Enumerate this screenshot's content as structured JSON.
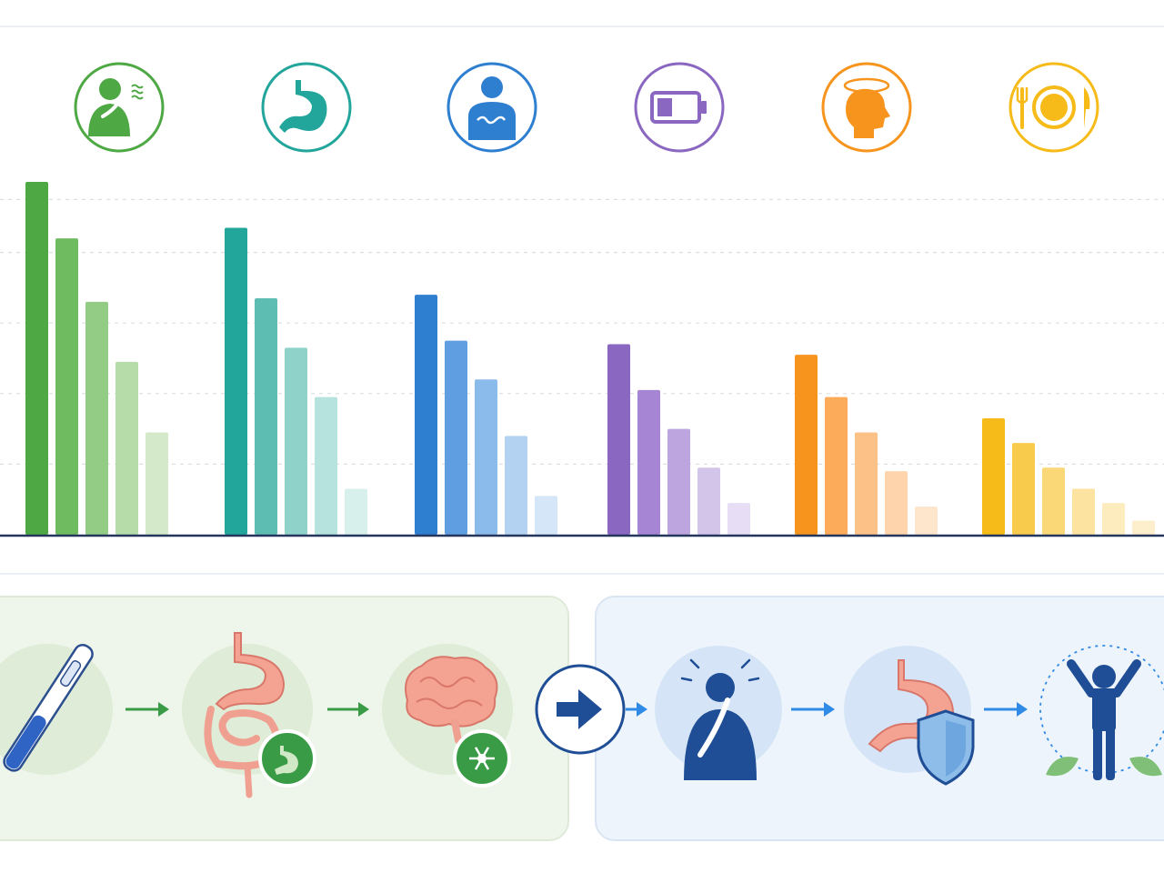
{
  "chart_data": {
    "type": "bar",
    "categories": [
      "nausea",
      "stomach",
      "abdominal-pain",
      "fatigue",
      "dizziness",
      "appetite"
    ],
    "series": [
      {
        "values": [
          100,
          87,
          68,
          54,
          51,
          33
        ]
      },
      {
        "values": [
          84,
          67,
          55,
          41,
          39,
          26
        ]
      },
      {
        "values": [
          66,
          53,
          44,
          30,
          29,
          19
        ]
      },
      {
        "values": [
          49,
          39,
          28,
          19,
          18,
          13
        ]
      },
      {
        "values": [
          29,
          13,
          11,
          9,
          8,
          9
        ]
      },
      {
        "values": [
          null,
          null,
          null,
          null,
          null,
          4
        ]
      }
    ],
    "ylim": [
      0,
      100
    ],
    "grid": true,
    "colors": [
      [
        "#4ea843",
        "#6fbb5f",
        "#93cc84",
        "#b6dca9",
        "#d3e9c9"
      ],
      [
        "#22a59b",
        "#5ebdb3",
        "#8fd2ca",
        "#b6e3dd",
        "#d7f0ec"
      ],
      [
        "#2f7fd1",
        "#5f9ee0",
        "#8bbbea",
        "#b3d2f2",
        "#d5e6f8"
      ],
      [
        "#8a67c0",
        "#a686d4",
        "#bda6df",
        "#d3c4ea",
        "#e7ddf4"
      ],
      [
        "#f7941d",
        "#fbab5a",
        "#fcc186",
        "#fdd4ab",
        "#fee6cd"
      ],
      [
        "#f6bb19",
        "#f8cb4c",
        "#fad877",
        "#fce3a0",
        "#fdecbd",
        "#feefcc"
      ]
    ]
  },
  "icons": [
    {
      "name": "nausea-icon",
      "color": "#4ea843"
    },
    {
      "name": "stomach-icon",
      "color": "#22a59b"
    },
    {
      "name": "abdominal-pain-icon",
      "color": "#2f7fd1"
    },
    {
      "name": "fatigue-battery-icon",
      "color": "#8a67c0"
    },
    {
      "name": "dizziness-icon",
      "color": "#f7941d"
    },
    {
      "name": "appetite-plate-icon",
      "color": "#f6bb19"
    }
  ],
  "flow": {
    "left_panel": [
      "injection-pen-icon",
      "digestive-tract-icon",
      "brain-receptor-icon"
    ],
    "center": "arrow-right-icon",
    "right_panel": [
      "nausea-person-icon",
      "protected-stomach-icon",
      "healthy-person-icon"
    ],
    "colors": {
      "green": "#3a9b46",
      "navy": "#1f4e96",
      "blue": "#2f8be6"
    }
  }
}
